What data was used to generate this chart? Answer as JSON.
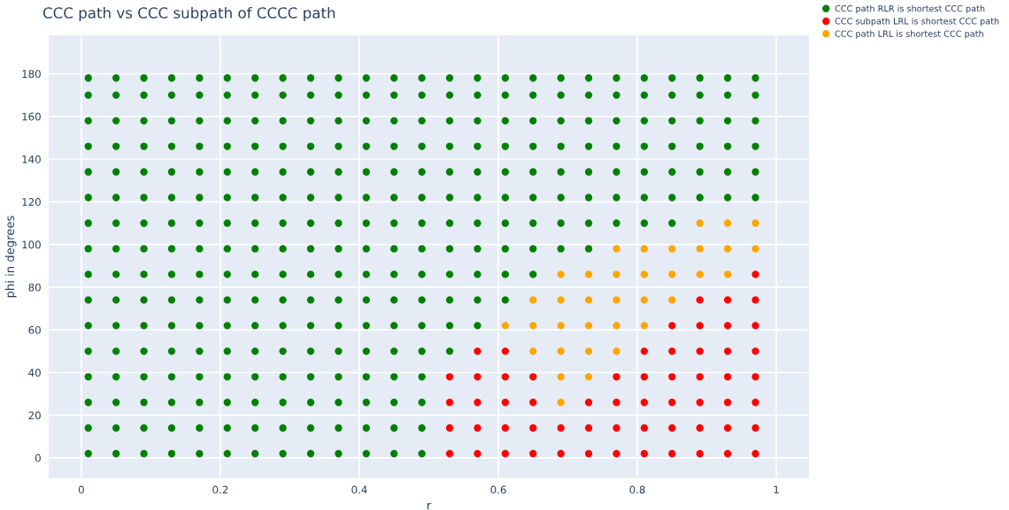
{
  "chart_data": {
    "type": "scatter",
    "title": "CCC path vs CCC subpath of CCCC path",
    "xlabel": "r",
    "ylabel": "phi in degrees",
    "xlim": [
      -0.047,
      1.047
    ],
    "ylim": [
      -9.5,
      198
    ],
    "xticks": [
      0,
      0.2,
      0.4,
      0.6,
      0.8,
      1
    ],
    "yticks": [
      0,
      20,
      40,
      60,
      80,
      100,
      120,
      140,
      160,
      180
    ],
    "grid": true,
    "legend": "top right",
    "marker": "circle",
    "series": [
      {
        "name": "CCC path RLR is shortest CCC path",
        "color": "#008000",
        "x": [
          0.01,
          0.01,
          0.01,
          0.01,
          0.01,
          0.01,
          0.01,
          0.01,
          0.01,
          0.01,
          0.01,
          0.01,
          0.01,
          0.01,
          0.01,
          0.01,
          0.05,
          0.05,
          0.05,
          0.05,
          0.05,
          0.05,
          0.05,
          0.05,
          0.05,
          0.05,
          0.05,
          0.05,
          0.05,
          0.05,
          0.05,
          0.05,
          0.09,
          0.09,
          0.09,
          0.09,
          0.09,
          0.09,
          0.09,
          0.09,
          0.09,
          0.09,
          0.09,
          0.09,
          0.09,
          0.09,
          0.09,
          0.09,
          0.13,
          0.13,
          0.13,
          0.13,
          0.13,
          0.13,
          0.13,
          0.13,
          0.13,
          0.13,
          0.13,
          0.13,
          0.13,
          0.13,
          0.13,
          0.13,
          0.17,
          0.17,
          0.17,
          0.17,
          0.17,
          0.17,
          0.17,
          0.17,
          0.17,
          0.17,
          0.17,
          0.17,
          0.17,
          0.17,
          0.17,
          0.17,
          0.21,
          0.21,
          0.21,
          0.21,
          0.21,
          0.21,
          0.21,
          0.21,
          0.21,
          0.21,
          0.21,
          0.21,
          0.21,
          0.21,
          0.21,
          0.21,
          0.25,
          0.25,
          0.25,
          0.25,
          0.25,
          0.25,
          0.25,
          0.25,
          0.25,
          0.25,
          0.25,
          0.25,
          0.25,
          0.25,
          0.25,
          0.25,
          0.29,
          0.29,
          0.29,
          0.29,
          0.29,
          0.29,
          0.29,
          0.29,
          0.29,
          0.29,
          0.29,
          0.29,
          0.29,
          0.29,
          0.29,
          0.29,
          0.33,
          0.33,
          0.33,
          0.33,
          0.33,
          0.33,
          0.33,
          0.33,
          0.33,
          0.33,
          0.33,
          0.33,
          0.33,
          0.33,
          0.33,
          0.33,
          0.37,
          0.37,
          0.37,
          0.37,
          0.37,
          0.37,
          0.37,
          0.37,
          0.37,
          0.37,
          0.37,
          0.37,
          0.37,
          0.37,
          0.37,
          0.37,
          0.41,
          0.41,
          0.41,
          0.41,
          0.41,
          0.41,
          0.41,
          0.41,
          0.41,
          0.41,
          0.41,
          0.41,
          0.41,
          0.41,
          0.41,
          0.41,
          0.45,
          0.45,
          0.45,
          0.45,
          0.45,
          0.45,
          0.45,
          0.45,
          0.45,
          0.45,
          0.45,
          0.45,
          0.45,
          0.45,
          0.45,
          0.45,
          0.49,
          0.49,
          0.49,
          0.49,
          0.49,
          0.49,
          0.49,
          0.49,
          0.49,
          0.49,
          0.49,
          0.49,
          0.49,
          0.49,
          0.49,
          0.49,
          0.53,
          0.53,
          0.53,
          0.53,
          0.53,
          0.53,
          0.53,
          0.53,
          0.53,
          0.53,
          0.53,
          0.53,
          0.57,
          0.57,
          0.57,
          0.57,
          0.57,
          0.57,
          0.57,
          0.57,
          0.57,
          0.57,
          0.57,
          0.61,
          0.61,
          0.61,
          0.61,
          0.61,
          0.61,
          0.61,
          0.61,
          0.61,
          0.61,
          0.65,
          0.65,
          0.65,
          0.65,
          0.65,
          0.65,
          0.65,
          0.65,
          0.65,
          0.69,
          0.69,
          0.69,
          0.69,
          0.69,
          0.69,
          0.69,
          0.69,
          0.73,
          0.73,
          0.73,
          0.73,
          0.73,
          0.73,
          0.73,
          0.73,
          0.77,
          0.77,
          0.77,
          0.77,
          0.77,
          0.77,
          0.77,
          0.81,
          0.81,
          0.81,
          0.81,
          0.81,
          0.81,
          0.81,
          0.85,
          0.85,
          0.85,
          0.85,
          0.85,
          0.85,
          0.85,
          0.89,
          0.89,
          0.89,
          0.89,
          0.89,
          0.89,
          0.93,
          0.93,
          0.93,
          0.93,
          0.93,
          0.93,
          0.97,
          0.97,
          0.97,
          0.97,
          0.97,
          0.97
        ],
        "values": [
          2,
          14,
          26,
          38,
          50,
          62,
          74,
          86,
          98,
          110,
          122,
          134,
          146,
          158,
          170,
          178,
          2,
          14,
          26,
          38,
          50,
          62,
          74,
          86,
          98,
          110,
          122,
          134,
          146,
          158,
          170,
          178,
          2,
          14,
          26,
          38,
          50,
          62,
          74,
          86,
          98,
          110,
          122,
          134,
          146,
          158,
          170,
          178,
          2,
          14,
          26,
          38,
          50,
          62,
          74,
          86,
          98,
          110,
          122,
          134,
          146,
          158,
          170,
          178,
          2,
          14,
          26,
          38,
          50,
          62,
          74,
          86,
          98,
          110,
          122,
          134,
          146,
          158,
          170,
          178,
          2,
          14,
          26,
          38,
          50,
          62,
          74,
          86,
          98,
          110,
          122,
          134,
          146,
          158,
          170,
          178,
          2,
          14,
          26,
          38,
          50,
          62,
          74,
          86,
          98,
          110,
          122,
          134,
          146,
          158,
          170,
          178,
          2,
          14,
          26,
          38,
          50,
          62,
          74,
          86,
          98,
          110,
          122,
          134,
          146,
          158,
          170,
          178,
          2,
          14,
          26,
          38,
          50,
          62,
          74,
          86,
          98,
          110,
          122,
          134,
          146,
          158,
          170,
          178,
          2,
          14,
          26,
          38,
          50,
          62,
          74,
          86,
          98,
          110,
          122,
          134,
          146,
          158,
          170,
          178,
          2,
          14,
          26,
          38,
          50,
          62,
          74,
          86,
          98,
          110,
          122,
          134,
          146,
          158,
          170,
          178,
          2,
          14,
          26,
          38,
          50,
          62,
          74,
          86,
          98,
          110,
          122,
          134,
          146,
          158,
          170,
          178,
          2,
          14,
          26,
          38,
          50,
          62,
          74,
          86,
          98,
          110,
          122,
          134,
          146,
          158,
          170,
          178,
          50,
          62,
          74,
          86,
          98,
          110,
          122,
          134,
          146,
          158,
          170,
          178,
          62,
          74,
          86,
          98,
          110,
          122,
          134,
          146,
          158,
          170,
          178,
          74,
          86,
          98,
          110,
          122,
          134,
          146,
          158,
          170,
          178,
          86,
          98,
          110,
          122,
          134,
          146,
          158,
          170,
          178,
          98,
          110,
          122,
          134,
          146,
          158,
          170,
          178,
          98,
          110,
          122,
          134,
          146,
          158,
          170,
          178,
          110,
          122,
          134,
          146,
          158,
          170,
          178,
          110,
          122,
          134,
          146,
          158,
          170,
          178,
          110,
          122,
          134,
          146,
          158,
          170,
          178,
          122,
          134,
          146,
          158,
          170,
          178,
          122,
          134,
          146,
          158,
          170,
          178,
          122,
          134,
          146,
          158,
          170,
          178
        ]
      },
      {
        "name": "CCC subpath LRL is shortest CCC path",
        "color": "#ff0000",
        "x": [
          0.53,
          0.53,
          0.53,
          0.53,
          0.57,
          0.57,
          0.57,
          0.57,
          0.57,
          0.61,
          0.61,
          0.61,
          0.61,
          0.61,
          0.65,
          0.65,
          0.65,
          0.65,
          0.69,
          0.69,
          0.73,
          0.73,
          0.73,
          0.77,
          0.77,
          0.77,
          0.77,
          0.81,
          0.81,
          0.81,
          0.81,
          0.81,
          0.85,
          0.85,
          0.85,
          0.85,
          0.85,
          0.85,
          0.89,
          0.89,
          0.89,
          0.89,
          0.89,
          0.89,
          0.89,
          0.93,
          0.93,
          0.93,
          0.93,
          0.93,
          0.93,
          0.93,
          0.97,
          0.97,
          0.97,
          0.97,
          0.97,
          0.97,
          0.97,
          0.97
        ],
        "values": [
          2,
          14,
          26,
          38,
          2,
          14,
          26,
          38,
          50,
          2,
          14,
          26,
          38,
          50,
          2,
          14,
          26,
          38,
          2,
          14,
          2,
          14,
          26,
          2,
          14,
          26,
          38,
          2,
          14,
          26,
          38,
          50,
          2,
          14,
          26,
          38,
          50,
          62,
          2,
          14,
          26,
          38,
          50,
          62,
          74,
          2,
          14,
          26,
          38,
          50,
          62,
          74,
          2,
          14,
          26,
          38,
          50,
          62,
          74,
          86
        ]
      },
      {
        "name": "CCC path LRL is shortest CCC path",
        "color": "#ffa500",
        "x": [
          0.61,
          0.65,
          0.65,
          0.65,
          0.69,
          0.69,
          0.69,
          0.69,
          0.69,
          0.69,
          0.73,
          0.73,
          0.73,
          0.73,
          0.73,
          0.77,
          0.77,
          0.77,
          0.77,
          0.77,
          0.81,
          0.81,
          0.81,
          0.81,
          0.85,
          0.85,
          0.85,
          0.89,
          0.89,
          0.89,
          0.93,
          0.93,
          0.93,
          0.97,
          0.97
        ],
        "values": [
          62,
          50,
          62,
          74,
          26,
          38,
          50,
          62,
          74,
          86,
          38,
          50,
          62,
          74,
          86,
          50,
          62,
          74,
          86,
          98,
          62,
          74,
          86,
          98,
          74,
          86,
          98,
          86,
          98,
          110,
          86,
          98,
          110,
          98,
          110
        ]
      }
    ]
  }
}
